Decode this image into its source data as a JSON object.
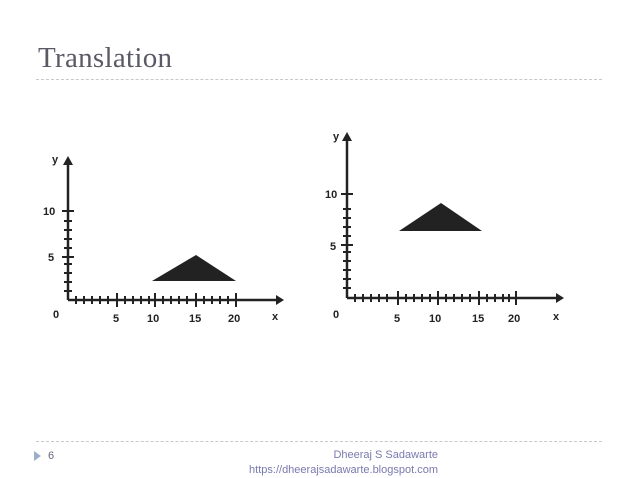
{
  "slide": {
    "title": "Translation",
    "page_number": "6",
    "footer_author": "Dheeraj S Sadawarte",
    "footer_url": "https://dheerajsadawarte.blogspot.com"
  },
  "diagrams": [
    {
      "x_axis_label": "x",
      "y_axis_label": "y",
      "origin_label": "0",
      "x_ticks": [
        "5",
        "10",
        "15",
        "20"
      ],
      "y_ticks": [
        "5",
        "10"
      ],
      "triangle": [
        [
          10,
          2.5
        ],
        [
          15,
          5
        ],
        [
          20,
          2.5
        ]
      ]
    },
    {
      "x_axis_label": "x",
      "y_axis_label": "y",
      "origin_label": "0",
      "x_ticks": [
        "5",
        "10",
        "15",
        "20"
      ],
      "y_ticks": [
        "5",
        "10"
      ],
      "triangle": [
        [
          5,
          7
        ],
        [
          10,
          9.5
        ],
        [
          15,
          7
        ]
      ]
    }
  ],
  "colors": {
    "title": "#5a5a66",
    "axes": "#222222",
    "triangle": "#222222",
    "footer": "#7a7ab0"
  }
}
